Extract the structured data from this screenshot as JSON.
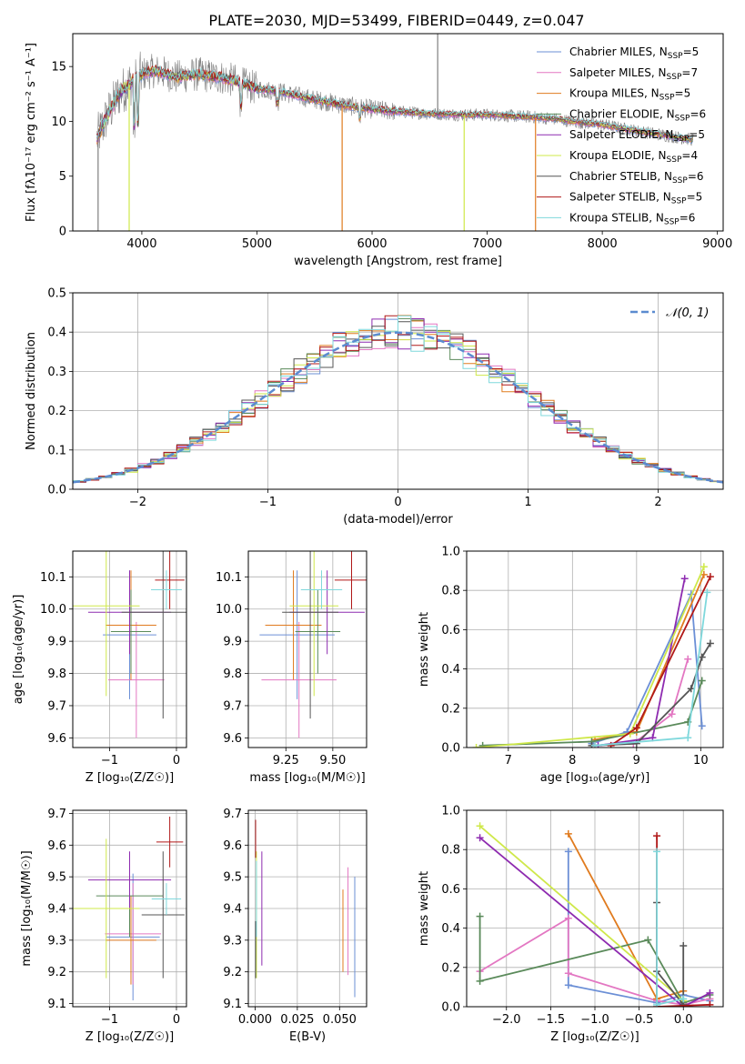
{
  "figure_title": "PLATE=2030, MJD=53499, FIBERID=0449, z=0.047",
  "colors": {
    "Chabrier MILES": "#6b8fd6",
    "Salpeter MILES": "#e377c2",
    "Kroupa MILES": "#e07b1f",
    "Chabrier ELODIE": "#5a8a5a",
    "Salpeter ELODIE": "#8e2bb0",
    "Kroupa ELODIE": "#cfe84a",
    "Chabrier STELIB": "#555555",
    "Salpeter STELIB": "#b01818",
    "Kroupa STELIB": "#7fd8dc",
    "data": "#808080"
  },
  "chart_data": [
    {
      "id": "spectrum",
      "type": "line",
      "title": "PLATE=2030, MJD=53499, FIBERID=0449, z=0.047",
      "xlabel": "wavelength [Angstrom, rest frame]",
      "ylabel": "Flux [fλ10⁻¹⁷ erg cm⁻² s⁻¹ A⁻¹]",
      "xlim": [
        3400,
        9050
      ],
      "ylim": [
        0,
        18
      ],
      "xticks": [
        4000,
        5000,
        6000,
        7000,
        8000,
        9000
      ],
      "yticks": [
        0,
        5,
        10,
        15
      ],
      "legend_position": "top-right",
      "legend": [
        {
          "label": "Chabrier MILES, N",
          "sub": "SSP",
          "suffix": "=5"
        },
        {
          "label": "Salpeter MILES, N",
          "sub": "SSP",
          "suffix": "=7"
        },
        {
          "label": "Kroupa MILES, N",
          "sub": "SSP",
          "suffix": "=5"
        },
        {
          "label": "Chabrier ELODIE, N",
          "sub": "SSP",
          "suffix": "=6"
        },
        {
          "label": "Salpeter ELODIE, N",
          "sub": "SSP",
          "suffix": "=5"
        },
        {
          "label": "Kroupa ELODIE, N",
          "sub": "SSP",
          "suffix": "=4"
        },
        {
          "label": "Chabrier STELIB, N",
          "sub": "SSP",
          "suffix": "=6"
        },
        {
          "label": "Salpeter STELIB, N",
          "sub": "SSP",
          "suffix": "=5"
        },
        {
          "label": "Kroupa STELIB, N",
          "sub": "SSP",
          "suffix": "=6"
        }
      ],
      "continuum": [
        [
          3600,
          8.2
        ],
        [
          3700,
          10.5
        ],
        [
          3800,
          12.5
        ],
        [
          3900,
          13.5
        ],
        [
          4000,
          14.3
        ],
        [
          4100,
          14.6
        ],
        [
          4200,
          14.4
        ],
        [
          4300,
          14.0
        ],
        [
          4400,
          14.2
        ],
        [
          4500,
          14.3
        ],
        [
          4600,
          14.1
        ],
        [
          4700,
          14.0
        ],
        [
          4800,
          13.7
        ],
        [
          4900,
          13.3
        ],
        [
          5000,
          13.0
        ],
        [
          5200,
          12.7
        ],
        [
          5400,
          12.2
        ],
        [
          5600,
          11.8
        ],
        [
          5800,
          11.4
        ],
        [
          6000,
          11.1
        ],
        [
          6200,
          10.9
        ],
        [
          6500,
          10.7
        ],
        [
          6800,
          10.6
        ],
        [
          7000,
          10.6
        ],
        [
          7200,
          10.5
        ],
        [
          7400,
          10.4
        ],
        [
          7600,
          10.2
        ],
        [
          7800,
          9.9
        ],
        [
          8000,
          9.7
        ],
        [
          8200,
          9.3
        ],
        [
          8500,
          8.8
        ],
        [
          8800,
          8.3
        ]
      ],
      "absorption_dips": [
        {
          "series": "Kroupa MILES",
          "x": 5740,
          "y": 0
        },
        {
          "series": "Kroupa MILES",
          "x": 7420,
          "y": 0
        },
        {
          "series": "Kroupa ELODIE",
          "x": 3890,
          "y": 0
        },
        {
          "series": "Kroupa ELODIE",
          "x": 6800,
          "y": 0
        },
        {
          "series": "data",
          "x": 3620,
          "y": 0
        },
        {
          "series": "data",
          "x": 6570,
          "y": 18
        }
      ]
    },
    {
      "id": "residuals",
      "type": "histogram",
      "xlabel": "(data-model)/error",
      "ylabel": "Normed distribution",
      "xlim": [
        -2.5,
        2.5
      ],
      "ylim": [
        0,
        0.5
      ],
      "xticks": [
        -2,
        -1,
        0,
        1,
        2
      ],
      "yticks": [
        0.0,
        0.1,
        0.2,
        0.3,
        0.4,
        0.5
      ],
      "bin_width": 0.1,
      "reference_curve": "𝒩(0, 1)",
      "legend_position": "top-right"
    },
    {
      "id": "age-vs-Z",
      "type": "errorbar",
      "xlabel": "Z [log₁₀(Z/Z☉)]",
      "ylabel": "age  [log₁₀(age/yr)]",
      "xlim": [
        -1.55,
        0.15
      ],
      "ylim": [
        9.57,
        10.18
      ],
      "xticks": [
        -1,
        0
      ],
      "yticks": [
        9.6,
        9.7,
        9.8,
        9.9,
        10.0,
        10.1
      ],
      "points": [
        {
          "series": "Chabrier MILES",
          "x": -0.7,
          "xerr": 0.4,
          "y": 9.92,
          "yerr": 0.2
        },
        {
          "series": "Salpeter MILES",
          "x": -0.6,
          "xerr": 0.42,
          "y": 9.78,
          "yerr": 0.18
        },
        {
          "series": "Kroupa MILES",
          "x": -0.68,
          "xerr": 0.38,
          "y": 9.95,
          "yerr": 0.17
        },
        {
          "series": "Chabrier ELODIE",
          "x": -0.68,
          "xerr": 0.3,
          "y": 9.93,
          "yerr": 0.13
        },
        {
          "series": "Salpeter ELODIE",
          "x": -0.7,
          "xerr": 0.62,
          "y": 9.99,
          "yerr": 0.13
        },
        {
          "series": "Kroupa ELODIE",
          "x": -1.05,
          "xerr": 0.5,
          "y": 10.01,
          "yerr": 0.28
        },
        {
          "series": "Chabrier STELIB",
          "x": -0.2,
          "xerr": 0.62,
          "y": 9.99,
          "yerr": 0.33
        },
        {
          "series": "Salpeter STELIB",
          "x": -0.1,
          "xerr": 0.22,
          "y": 10.09,
          "yerr": 0.09
        },
        {
          "series": "Kroupa STELIB",
          "x": -0.15,
          "xerr": 0.23,
          "y": 10.06,
          "yerr": 0.06
        }
      ]
    },
    {
      "id": "age-vs-mass",
      "type": "errorbar",
      "xlabel": "mass [log₁₀(M/M☉)]",
      "ylabel": "",
      "xlim": [
        9.05,
        9.68
      ],
      "ylim": [
        9.57,
        10.18
      ],
      "xticks": [
        9.25,
        9.5
      ],
      "xtick_labels": [
        "9.25",
        "9.50"
      ],
      "yticks": [
        9.6,
        9.7,
        9.8,
        9.9,
        10.0,
        10.1
      ],
      "points": [
        {
          "series": "Chabrier MILES",
          "x": 9.31,
          "xerr": 0.2,
          "y": 9.92,
          "yerr": 0.2
        },
        {
          "series": "Salpeter MILES",
          "x": 9.32,
          "xerr": 0.2,
          "y": 9.78,
          "yerr": 0.18
        },
        {
          "series": "Kroupa MILES",
          "x": 9.29,
          "xerr": 0.15,
          "y": 9.95,
          "yerr": 0.17
        },
        {
          "series": "Chabrier ELODIE",
          "x": 9.42,
          "xerr": 0.12,
          "y": 9.93,
          "yerr": 0.13
        },
        {
          "series": "Salpeter ELODIE",
          "x": 9.47,
          "xerr": 0.2,
          "y": 9.99,
          "yerr": 0.13
        },
        {
          "series": "Kroupa ELODIE",
          "x": 9.4,
          "xerr": 0.13,
          "y": 10.01,
          "yerr": 0.28
        },
        {
          "series": "Chabrier STELIB",
          "x": 9.38,
          "xerr": 0.15,
          "y": 9.99,
          "yerr": 0.33
        },
        {
          "series": "Salpeter STELIB",
          "x": 9.6,
          "xerr": 0.09,
          "y": 10.09,
          "yerr": 0.09
        },
        {
          "series": "Kroupa STELIB",
          "x": 9.44,
          "xerr": 0.11,
          "y": 10.06,
          "yerr": 0.06
        }
      ]
    },
    {
      "id": "massweight-vs-age",
      "type": "line",
      "xlabel": "age  [log₁₀(age/yr)]",
      "ylabel": "mass weight",
      "xlim": [
        6.35,
        10.35
      ],
      "ylim": [
        0,
        1
      ],
      "xticks": [
        7,
        8,
        9,
        10
      ],
      "yticks": [
        0.0,
        0.2,
        0.4,
        0.6,
        0.8,
        1.0
      ],
      "series": [
        {
          "name": "Chabrier MILES",
          "points": [
            [
              8.3,
              0.02
            ],
            [
              8.85,
              0.08
            ],
            [
              9.85,
              0.78
            ],
            [
              10.02,
              0.11
            ]
          ]
        },
        {
          "name": "Salpeter MILES",
          "points": [
            [
              8.35,
              0.01
            ],
            [
              8.95,
              0.02
            ],
            [
              9.55,
              0.17
            ],
            [
              9.8,
              0.45
            ]
          ]
        },
        {
          "name": "Kroupa MILES",
          "points": [
            [
              8.35,
              0.04
            ],
            [
              9.0,
              0.08
            ],
            [
              10.05,
              0.88
            ]
          ]
        },
        {
          "name": "Chabrier ELODIE",
          "points": [
            [
              6.6,
              0.01
            ],
            [
              8.3,
              0.03
            ],
            [
              9.8,
              0.13
            ],
            [
              10.02,
              0.34
            ]
          ]
        },
        {
          "name": "Salpeter ELODIE",
          "points": [
            [
              8.4,
              0.01
            ],
            [
              9.25,
              0.05
            ],
            [
              9.75,
              0.86
            ]
          ]
        },
        {
          "name": "Kroupa ELODIE",
          "points": [
            [
              6.5,
              0.0
            ],
            [
              8.9,
              0.07
            ],
            [
              10.05,
              0.92
            ]
          ]
        },
        {
          "name": "Chabrier STELIB",
          "points": [
            [
              8.3,
              0.01
            ],
            [
              9.0,
              0.02
            ],
            [
              9.85,
              0.3
            ],
            [
              10.02,
              0.46
            ],
            [
              10.15,
              0.53
            ]
          ]
        },
        {
          "name": "Salpeter STELIB",
          "points": [
            [
              8.6,
              0.01
            ],
            [
              9.0,
              0.1
            ],
            [
              10.15,
              0.87
            ]
          ]
        },
        {
          "name": "Kroupa STELIB",
          "points": [
            [
              8.35,
              0.01
            ],
            [
              9.8,
              0.05
            ],
            [
              10.1,
              0.79
            ]
          ]
        }
      ]
    },
    {
      "id": "mass-vs-Z",
      "type": "errorbar",
      "xlabel": "Z [log₁₀(Z/Z☉)]",
      "ylabel": "mass [log₁₀(M/M☉)]",
      "xlim": [
        -1.55,
        0.15
      ],
      "ylim": [
        9.09,
        9.71
      ],
      "xticks": [
        -1,
        0
      ],
      "yticks": [
        9.1,
        9.2,
        9.3,
        9.4,
        9.5,
        9.6,
        9.7
      ],
      "points": [
        {
          "series": "Chabrier MILES",
          "x": -0.65,
          "xerr": 0.4,
          "y": 9.31,
          "yerr": 0.2
        },
        {
          "series": "Salpeter MILES",
          "x": -0.65,
          "xerr": 0.42,
          "y": 9.32,
          "yerr": 0.16
        },
        {
          "series": "Kroupa MILES",
          "x": -0.68,
          "xerr": 0.38,
          "y": 9.3,
          "yerr": 0.14
        },
        {
          "series": "Chabrier ELODIE",
          "x": -0.7,
          "xerr": 0.5,
          "y": 9.44,
          "yerr": 0.13
        },
        {
          "series": "Salpeter ELODIE",
          "x": -0.7,
          "xerr": 0.62,
          "y": 9.49,
          "yerr": 0.09
        },
        {
          "series": "Kroupa ELODIE",
          "x": -1.05,
          "xerr": 0.5,
          "y": 9.4,
          "yerr": 0.22
        },
        {
          "series": "Chabrier STELIB",
          "x": -0.2,
          "xerr": 0.32,
          "y": 9.38,
          "yerr": 0.2
        },
        {
          "series": "Salpeter STELIB",
          "x": -0.1,
          "xerr": 0.2,
          "y": 9.61,
          "yerr": 0.08
        },
        {
          "series": "Kroupa STELIB",
          "x": -0.15,
          "xerr": 0.22,
          "y": 9.43,
          "yerr": 0.05
        }
      ]
    },
    {
      "id": "mass-vs-EBV",
      "type": "errorbar",
      "xlabel": "E(B-V)",
      "ylabel": "",
      "xlim": [
        -0.004,
        0.066
      ],
      "ylim": [
        9.09,
        9.71
      ],
      "xticks": [
        0.0,
        0.025,
        0.05
      ],
      "xtick_labels": [
        "0.000",
        "0.025",
        "0.050"
      ],
      "yticks": [
        9.1,
        9.2,
        9.3,
        9.4,
        9.5,
        9.6,
        9.7
      ],
      "points": [
        {
          "series": "Chabrier MILES",
          "x": 0.059,
          "y": 9.31,
          "yerr": 0.19
        },
        {
          "series": "Salpeter MILES",
          "x": 0.055,
          "y": 9.36,
          "yerr": 0.17
        },
        {
          "series": "Kroupa MILES",
          "x": 0.052,
          "y": 9.33,
          "yerr": 0.13
        },
        {
          "series": "Chabrier ELODIE",
          "x": 0.0005,
          "y": 9.3,
          "yerr": 0.06
        },
        {
          "series": "Salpeter ELODIE",
          "x": 0.004,
          "y": 9.4,
          "yerr": 0.18
        },
        {
          "series": "Kroupa ELODIE",
          "x": 0.0008,
          "y": 9.38,
          "yerr": 0.2
        },
        {
          "series": "Chabrier STELIB",
          "x": 0.0003,
          "y": 9.27,
          "yerr": 0.09
        },
        {
          "series": "Salpeter STELIB",
          "x": 0.0003,
          "y": 9.62,
          "yerr": 0.06
        },
        {
          "series": "Kroupa STELIB",
          "x": 0.0008,
          "y": 9.43,
          "yerr": 0.12
        }
      ]
    },
    {
      "id": "massweight-vs-Z",
      "type": "line",
      "xlabel": "Z [log₁₀(Z/Z☉)]",
      "ylabel": "mass weight",
      "xlim": [
        -2.45,
        0.45
      ],
      "ylim": [
        0,
        1
      ],
      "xticks": [
        -2.0,
        -1.5,
        -1.0,
        -0.5,
        0.0
      ],
      "xtick_labels": [
        "−2.0",
        "−1.5",
        "−1.0",
        "−0.5",
        "0.0"
      ],
      "yticks": [
        0.0,
        0.2,
        0.4,
        0.6,
        0.8,
        1.0
      ],
      "series": [
        {
          "name": "Chabrier MILES",
          "points": [
            [
              -1.3,
              0.79
            ],
            [
              -1.3,
              0.11
            ],
            [
              -0.3,
              0.02
            ],
            [
              0.0,
              0.06
            ],
            [
              0.3,
              0.03
            ]
          ]
        },
        {
          "name": "Salpeter MILES",
          "points": [
            [
              -2.3,
              0.18
            ],
            [
              -1.3,
              0.45
            ],
            [
              -1.3,
              0.17
            ],
            [
              -0.3,
              0.03
            ],
            [
              0.0,
              0.01
            ],
            [
              0.3,
              0.04
            ]
          ]
        },
        {
          "name": "Kroupa MILES",
          "points": [
            [
              -1.3,
              0.88
            ],
            [
              -0.3,
              0.04
            ],
            [
              0.0,
              0.08
            ]
          ]
        },
        {
          "name": "Chabrier ELODIE",
          "points": [
            [
              -2.3,
              0.46
            ],
            [
              -2.3,
              0.13
            ],
            [
              -0.4,
              0.34
            ],
            [
              0.0,
              0.02
            ],
            [
              0.3,
              0.06
            ]
          ]
        },
        {
          "name": "Salpeter ELODIE",
          "points": [
            [
              -2.3,
              0.86
            ],
            [
              0.0,
              0.0
            ],
            [
              0.3,
              0.07
            ]
          ]
        },
        {
          "name": "Kroupa ELODIE",
          "points": [
            [
              -2.3,
              0.92
            ],
            [
              0.0,
              0.03
            ]
          ]
        },
        {
          "name": "Chabrier STELIB",
          "points": [
            [
              -0.3,
              0.53
            ],
            [
              -0.3,
              0.18
            ],
            [
              0.0,
              0.01
            ],
            [
              0.0,
              0.31
            ]
          ]
        },
        {
          "name": "Salpeter STELIB",
          "points": [
            [
              -0.3,
              0.87
            ],
            [
              -0.3,
              0.0
            ],
            [
              0.3,
              0.01
            ]
          ]
        },
        {
          "name": "Kroupa STELIB",
          "points": [
            [
              -0.3,
              0.79
            ],
            [
              -0.3,
              0.01
            ],
            [
              0.0,
              0.04
            ]
          ]
        }
      ]
    }
  ]
}
